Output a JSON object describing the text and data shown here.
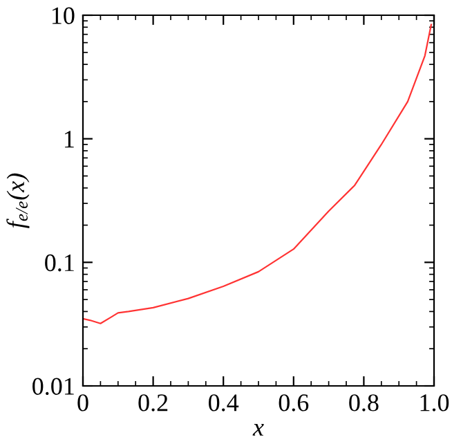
{
  "chart_data": {
    "type": "line",
    "xlabel": "x",
    "ylabel": "f$_{e/e}$(x)",
    "log": "y",
    "grid": false,
    "legend": false,
    "xlim": [
      0,
      1.0
    ],
    "ylim": [
      0.01,
      10
    ],
    "xticks": [
      0,
      0.2,
      0.4,
      0.6,
      0.8,
      {
        "value": 1.0,
        "label": "1.0"
      }
    ],
    "yticks": [
      0.01,
      0.1,
      1,
      10
    ],
    "series": [
      {
        "color": "#ff3333",
        "x": [
          0,
          0.02,
          0.05,
          0.08,
          0.1,
          0.13,
          0.2,
          0.3,
          0.4,
          0.5,
          0.6,
          0.7,
          0.774,
          0.849,
          0.925,
          0.974,
          0.992
        ],
        "values": [
          0.035,
          0.034,
          0.032,
          0.036,
          0.039,
          0.04,
          0.043,
          0.051,
          0.064,
          0.084,
          0.128,
          0.26,
          0.42,
          0.89,
          2.0,
          4.7,
          8.4
        ]
      }
    ]
  }
}
